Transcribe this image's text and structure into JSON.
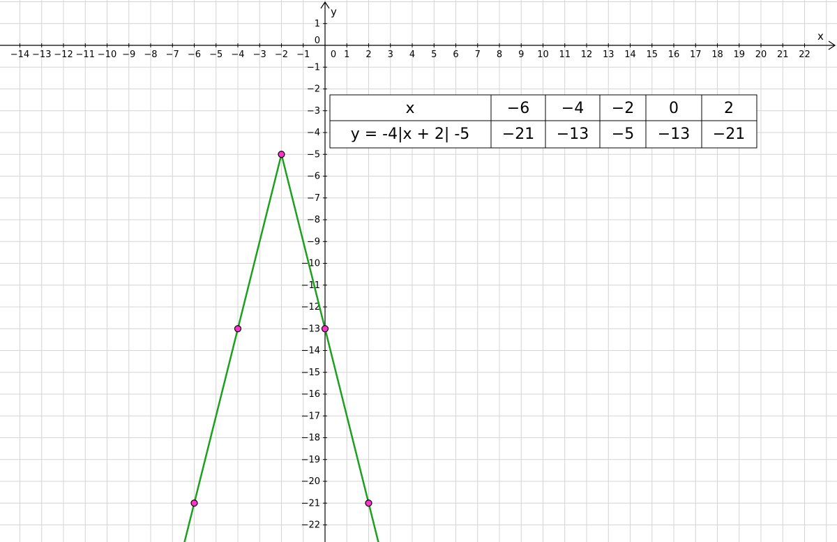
{
  "chart_data": {
    "type": "line",
    "xlabel": "x",
    "ylabel": "y",
    "xlim": [
      -14.9,
      23.2
    ],
    "ylim": [
      -23.5,
      2.4
    ],
    "x_ticks": [
      -14,
      -13,
      -12,
      -11,
      -10,
      -9,
      -8,
      -7,
      -6,
      -5,
      -4,
      -3,
      -2,
      -1,
      0,
      1,
      2,
      3,
      4,
      5,
      6,
      7,
      8,
      9,
      10,
      11,
      12,
      13,
      14,
      15,
      16,
      17,
      18,
      19,
      20,
      21,
      22
    ],
    "y_ticks": [
      1,
      0,
      -1,
      -2,
      -3,
      -4,
      -5,
      -6,
      -7,
      -8,
      -9,
      -10,
      -11,
      -12,
      -13,
      -14,
      -15,
      -16,
      -17,
      -18,
      -19,
      -20,
      -21,
      -22
    ],
    "grid": true,
    "series": [
      {
        "function": "y = -4|x + 2| - 5",
        "color": "#1aa01a",
        "x": [
          -6.6,
          -2,
          2.6
        ],
        "y": [
          -23.4,
          -5,
          -23.4
        ]
      }
    ],
    "points": {
      "color": "#ff33cc",
      "x": [
        -6,
        -4,
        -2,
        0,
        2
      ],
      "y": [
        -21,
        -13,
        -5,
        -13,
        -21
      ]
    },
    "table": {
      "row1_label": "x",
      "row2_label": "y =  -4|x + 2| -5",
      "x_values": [
        "−6",
        "−4",
        "−2",
        "0",
        "2"
      ],
      "y_values": [
        "−21",
        "−13",
        "−5",
        "−13",
        "−21"
      ]
    }
  }
}
